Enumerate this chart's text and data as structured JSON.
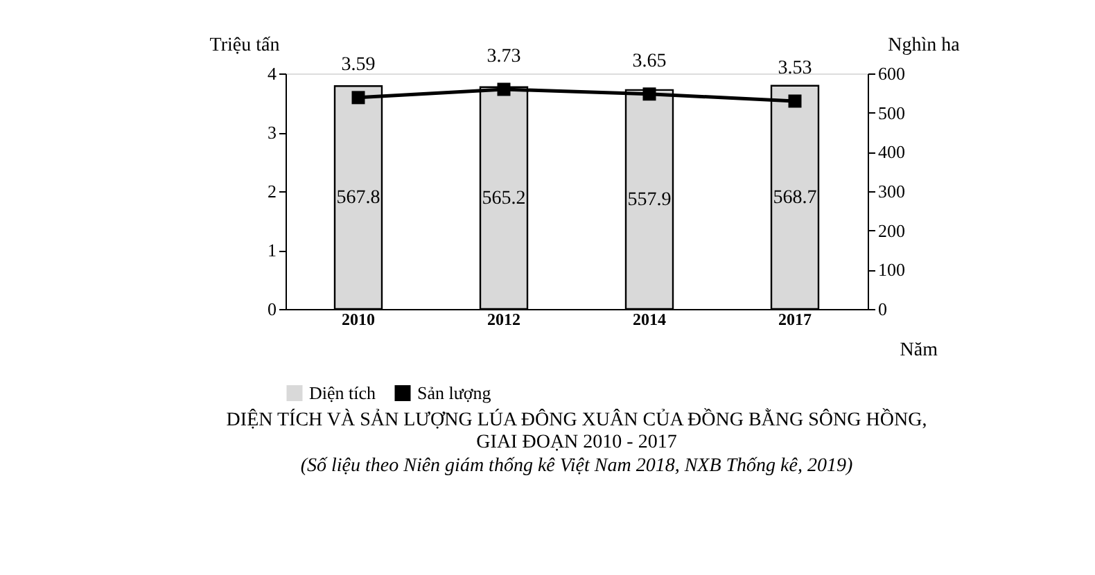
{
  "chart_data": {
    "type": "bar",
    "title": "DIỆN TÍCH VÀ SẢN LƯỢNG LÚA ĐÔNG XUÂN CỦA ĐỒNG BẰNG SÔNG HỒNG,\nGIAI ĐOẠN 2010 - 2017",
    "subtitle": "(Số liệu theo Niên giám thống kê Việt Nam 2018, NXB Thống kê, 2019)",
    "xlabel": "Năm",
    "ylabel": "Triệu tấn",
    "y2label": "Nghìn ha",
    "categories": [
      "2010",
      "2012",
      "2014",
      "2017"
    ],
    "series": [
      {
        "name": "Diện tích",
        "axis": "y2",
        "color": "#d9d9d9",
        "values": [
          567.8,
          565.2,
          557.9,
          568.7
        ]
      },
      {
        "name": "Sản lượng",
        "type": "line",
        "color": "#000000",
        "values": [
          3.59,
          3.73,
          3.65,
          3.53
        ]
      }
    ],
    "ylim": [
      0,
      4
    ],
    "yticks": [
      0,
      1,
      2,
      3,
      4
    ],
    "y2lim": [
      0,
      600
    ],
    "y2ticks": [
      0,
      100,
      200,
      300,
      400,
      500,
      600
    ],
    "data_labels": true,
    "legend": "bottom",
    "grid": false,
    "marker": "square",
    "line_style": "solid"
  }
}
